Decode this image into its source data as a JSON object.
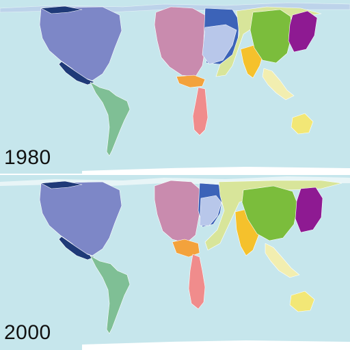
{
  "maps": [
    {
      "year_label": "1980",
      "regions": {
        "north_america": "#7d87c7",
        "north_america_edge": "#1f3a78",
        "latin_america": "#7fbf95",
        "western_europe": "#c98bae",
        "eastern_europe": "#3c63b8",
        "russia_region": "#b8c7ea",
        "middle_east": "#f3a23c",
        "africa": "#f08c8c",
        "central_asia": "#d8e59a",
        "south_asia": "#f5c12c",
        "china": "#7bbd3c",
        "japan_korea": "#8e1a92",
        "southeast_asia": "#f2eeb0",
        "oceania": "#f2e776",
        "ocean": "#c6e6ec"
      }
    },
    {
      "year_label": "2000",
      "regions": {
        "north_america": "#7d87c7",
        "north_america_edge": "#1f3a78",
        "latin_america": "#7fbf95",
        "western_europe": "#c98bae",
        "eastern_europe": "#3c63b8",
        "russia_region": "#b8c7ea",
        "middle_east": "#f3a23c",
        "africa": "#f08c8c",
        "central_asia": "#d8e59a",
        "south_asia": "#f5c12c",
        "china": "#7bbd3c",
        "japan_korea": "#8e1a92",
        "southeast_asia": "#f2eeb0",
        "oceania": "#f2e776",
        "ocean": "#c6e6ec"
      }
    }
  ]
}
